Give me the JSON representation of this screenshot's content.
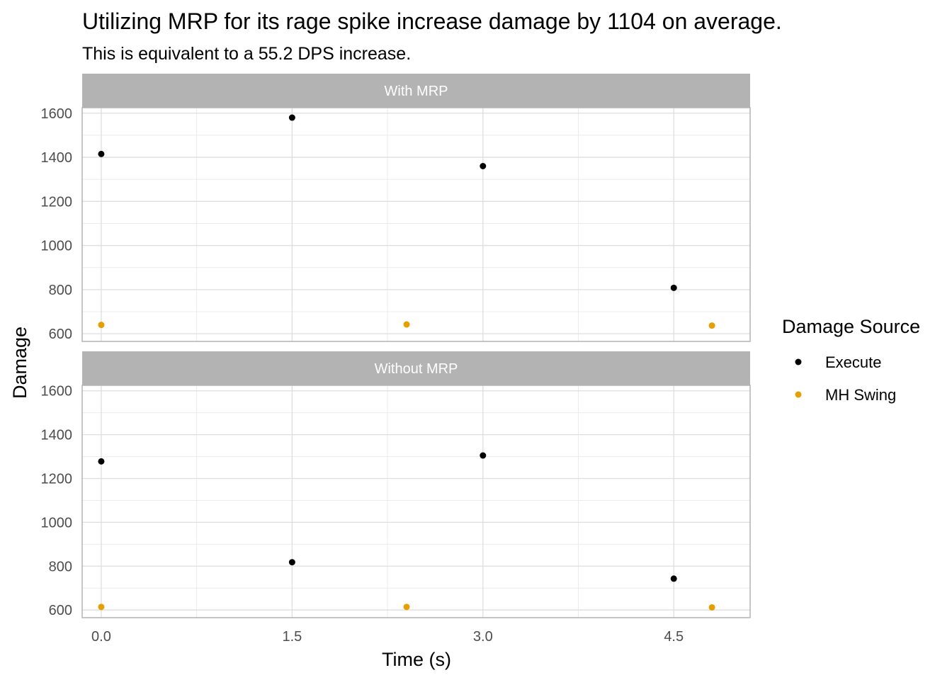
{
  "chart_data": {
    "type": "scatter",
    "title": "Utilizing MRP for its rage spike increase damage by 1104 on average.",
    "subtitle": "This is equivalent to a 55.2 DPS increase.",
    "xlabel": "Time (s)",
    "ylabel": "Damage",
    "xlim": [
      -0.15,
      5.1
    ],
    "ylim": [
      565,
      1625
    ],
    "x_ticks": [
      "0.0",
      "1.5",
      "3.0",
      "4.5"
    ],
    "y_ticks": [
      "600",
      "800",
      "1000",
      "1200",
      "1400",
      "1600"
    ],
    "grid": true,
    "legend": {
      "title": "Damage Source",
      "position": "right",
      "entries": [
        {
          "name": "Execute",
          "color": "#000000"
        },
        {
          "name": "MH Swing",
          "color": "#E69F00"
        }
      ]
    },
    "facets": [
      {
        "label": "With MRP",
        "series": [
          {
            "name": "Execute",
            "points": [
              [
                0.0,
                1415
              ],
              [
                1.5,
                1580
              ],
              [
                3.0,
                1360
              ],
              [
                4.5,
                808
              ]
            ]
          },
          {
            "name": "MH Swing",
            "points": [
              [
                0.0,
                640
              ],
              [
                2.4,
                642
              ],
              [
                4.8,
                637
              ]
            ]
          }
        ]
      },
      {
        "label": "Without MRP",
        "series": [
          {
            "name": "Execute",
            "points": [
              [
                0.0,
                1278
              ],
              [
                1.5,
                818
              ],
              [
                3.0,
                1305
              ],
              [
                4.5,
                743
              ]
            ]
          },
          {
            "name": "MH Swing",
            "points": [
              [
                0.0,
                614
              ],
              [
                2.4,
                614
              ],
              [
                4.8,
                612
              ]
            ]
          }
        ]
      }
    ]
  }
}
